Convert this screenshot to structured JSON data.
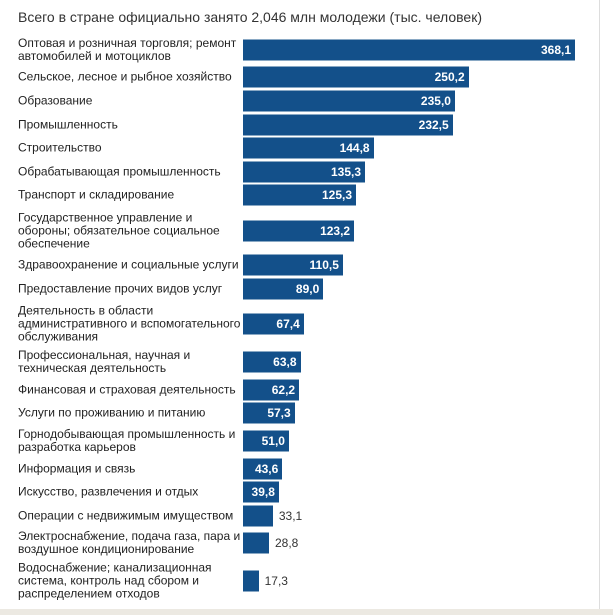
{
  "chart_data": {
    "type": "bar",
    "orientation": "horizontal",
    "title": "Всего в стране официально занято 2,046 млн молодежи (тыс. человек)",
    "color": "#13508a",
    "categories": [
      "Оптовая и розничная торговля; ремонт автомобилей и мотоциклов",
      "Сельское, лесное и рыбное хозяйство",
      "Образование",
      "Промышленность",
      "Строительство",
      "Обрабатывающая промышленность",
      "Транспорт и складирование",
      "Государственное управление и обороны; обязательное социальное обеспечение",
      "Здравоохранение и социальные услуги",
      "Предоставление прочих видов услуг",
      "Деятельность в области административного и вспомогательного обслуживания",
      "Профессиональная, научная и техническая деятельность",
      "Финансовая и страховая деятельность",
      "Услуги по проживанию и питанию",
      "Горнодобывающая промышленность и разработка карьеров",
      "Информация и связь",
      "Искусство, развлечения и отдых",
      "Операции с недвижимым имуществом",
      "Электроснабжение, подача газа, пара и воздушное кондиционирование",
      "Водоснабжение; канализационная система, контроль над сбором и распределением отходов"
    ],
    "values": [
      368.1,
      250.2,
      235.0,
      232.5,
      144.8,
      135.3,
      125.3,
      123.2,
      110.5,
      89.0,
      67.4,
      63.8,
      62.2,
      57.3,
      51.0,
      43.6,
      39.8,
      33.1,
      28.8,
      17.3
    ],
    "value_labels": [
      "368,1",
      "250,2",
      "235,0",
      "232,5",
      "144,8",
      "135,3",
      "125,3",
      "123,2",
      "110,5",
      "89,0",
      "67,4",
      "63,8",
      "62,2",
      "57,3",
      "51,0",
      "43,6",
      "39,8",
      "33,1",
      "28,8",
      "17,3"
    ]
  }
}
